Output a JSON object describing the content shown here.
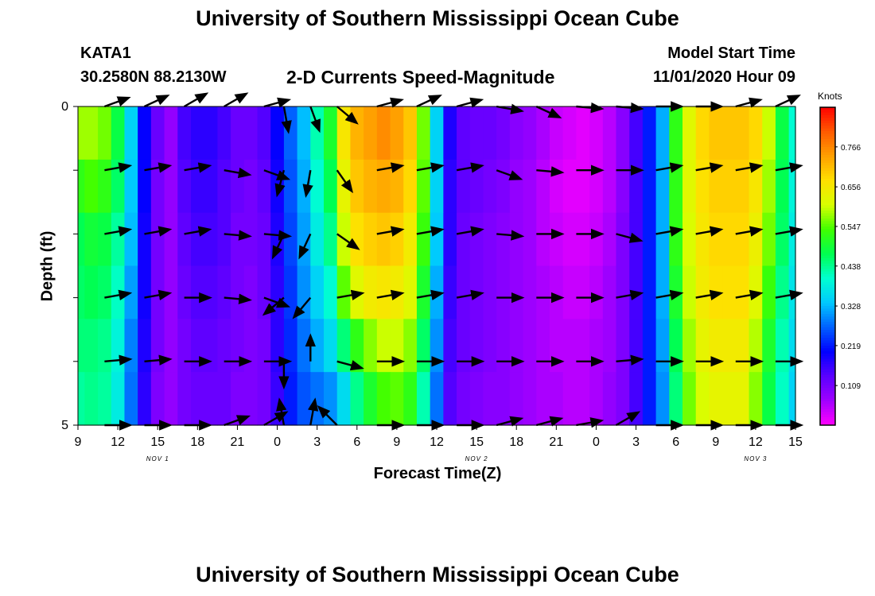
{
  "header": {
    "title": "University of Southern Mississippi Ocean Cube",
    "station": "KATA1",
    "coordinates": "30.2580N 88.2130W",
    "subtitle": "2-D Currents Speed-Magnitude",
    "model_start_label": "Model Start Time",
    "model_start_value": "11/01/2020 Hour 09"
  },
  "footer": {
    "title": "University of Southern Mississippi Ocean Cube"
  },
  "chart_data": {
    "type": "heatmap",
    "title": "2-D Currents Speed-Magnitude",
    "xlabel": "Forecast Time(Z)",
    "ylabel": "Depth (ft)",
    "x_start": "11/01/2020 09Z",
    "x_end": "11/03/2020 15Z",
    "x_ticks": [
      "9",
      "12",
      "15",
      "18",
      "21",
      "0",
      "3",
      "6",
      "9",
      "12",
      "15",
      "18",
      "21",
      "0",
      "3",
      "6",
      "9",
      "12",
      "15"
    ],
    "date_labels": [
      "NOV 1",
      "NOV 2",
      "NOV 3"
    ],
    "y_ticks": [
      "0",
      "5"
    ],
    "ylim": [
      0,
      5
    ],
    "y_inverted": true,
    "colorbar": {
      "unit": "Knots",
      "ticks": [
        "0.766",
        "0.656",
        "0.547",
        "0.438",
        "0.328",
        "0.219",
        "0.109"
      ],
      "range": [
        0,
        0.875
      ],
      "colors": [
        "#ff00ff",
        "#a000ff",
        "#5a00ff",
        "#0000ff",
        "#0060ff",
        "#00c8ff",
        "#00ffd0",
        "#00ff50",
        "#40ff00",
        "#d8ff00",
        "#ffe000",
        "#ffa000",
        "#ff5a00",
        "#ff0000"
      ]
    },
    "speed_time_points_hours": [
      0,
      1,
      2,
      3,
      4,
      5,
      6,
      7,
      8,
      9,
      10,
      11,
      12,
      13,
      14,
      15,
      16,
      17,
      18,
      19,
      20,
      21,
      22,
      23,
      24,
      25,
      26,
      27,
      28,
      29,
      30,
      31,
      32,
      33,
      34,
      35,
      36,
      37,
      38,
      39,
      40,
      41,
      42,
      43,
      44,
      45,
      46,
      47,
      48,
      49,
      50,
      51,
      52,
      53,
      54
    ],
    "speed_time_points": [
      [
        0.58,
        0.58,
        0.56,
        0.48,
        0.35,
        0.2,
        0.12,
        0.08,
        0.15,
        0.17,
        0.17,
        0.15,
        0.12,
        0.12,
        0.14,
        0.2,
        0.27,
        0.33,
        0.42,
        0.5,
        0.66,
        0.72,
        0.74,
        0.76,
        0.74,
        0.7,
        0.56,
        0.35,
        0.18,
        0.13,
        0.12,
        0.12,
        0.11,
        0.09,
        0.08,
        0.06,
        0.04,
        0.03,
        0.02,
        0.03,
        0.05,
        0.09,
        0.15,
        0.22,
        0.32,
        0.52,
        0.62,
        0.68,
        0.7,
        0.7,
        0.7,
        0.68,
        0.6,
        0.48,
        0.4
      ],
      [
        0.52,
        0.54,
        0.52,
        0.46,
        0.34,
        0.2,
        0.11,
        0.08,
        0.14,
        0.16,
        0.16,
        0.14,
        0.12,
        0.11,
        0.13,
        0.19,
        0.26,
        0.32,
        0.4,
        0.47,
        0.63,
        0.7,
        0.72,
        0.73,
        0.72,
        0.68,
        0.55,
        0.35,
        0.17,
        0.13,
        0.12,
        0.11,
        0.1,
        0.08,
        0.07,
        0.05,
        0.03,
        0.02,
        0.02,
        0.03,
        0.05,
        0.09,
        0.15,
        0.22,
        0.32,
        0.52,
        0.62,
        0.67,
        0.69,
        0.69,
        0.69,
        0.66,
        0.58,
        0.47,
        0.39
      ],
      [
        0.47,
        0.49,
        0.48,
        0.43,
        0.33,
        0.19,
        0.11,
        0.08,
        0.13,
        0.15,
        0.15,
        0.14,
        0.11,
        0.11,
        0.12,
        0.18,
        0.25,
        0.31,
        0.38,
        0.44,
        0.6,
        0.67,
        0.69,
        0.7,
        0.69,
        0.65,
        0.53,
        0.34,
        0.17,
        0.12,
        0.11,
        0.1,
        0.09,
        0.08,
        0.07,
        0.05,
        0.04,
        0.03,
        0.03,
        0.04,
        0.06,
        0.1,
        0.15,
        0.22,
        0.32,
        0.52,
        0.61,
        0.66,
        0.68,
        0.68,
        0.68,
        0.64,
        0.56,
        0.46,
        0.38
      ],
      [
        0.46,
        0.47,
        0.46,
        0.41,
        0.31,
        0.19,
        0.11,
        0.08,
        0.12,
        0.14,
        0.14,
        0.13,
        0.11,
        0.1,
        0.12,
        0.17,
        0.24,
        0.3,
        0.35,
        0.4,
        0.55,
        0.62,
        0.65,
        0.66,
        0.65,
        0.62,
        0.5,
        0.32,
        0.16,
        0.12,
        0.11,
        0.1,
        0.09,
        0.08,
        0.07,
        0.06,
        0.05,
        0.04,
        0.04,
        0.05,
        0.07,
        0.1,
        0.15,
        0.22,
        0.32,
        0.5,
        0.6,
        0.65,
        0.67,
        0.67,
        0.67,
        0.62,
        0.53,
        0.44,
        0.37
      ],
      [
        0.45,
        0.45,
        0.44,
        0.39,
        0.29,
        0.18,
        0.11,
        0.08,
        0.11,
        0.13,
        0.13,
        0.12,
        0.11,
        0.1,
        0.11,
        0.17,
        0.23,
        0.28,
        0.32,
        0.36,
        0.45,
        0.52,
        0.57,
        0.6,
        0.6,
        0.57,
        0.46,
        0.3,
        0.15,
        0.12,
        0.11,
        0.1,
        0.09,
        0.08,
        0.07,
        0.06,
        0.05,
        0.05,
        0.05,
        0.06,
        0.07,
        0.1,
        0.15,
        0.22,
        0.31,
        0.47,
        0.58,
        0.63,
        0.65,
        0.65,
        0.65,
        0.59,
        0.5,
        0.42,
        0.36
      ],
      [
        0.43,
        0.44,
        0.43,
        0.38,
        0.28,
        0.17,
        0.1,
        0.08,
        0.11,
        0.12,
        0.12,
        0.12,
        0.1,
        0.1,
        0.11,
        0.16,
        0.22,
        0.26,
        0.28,
        0.3,
        0.36,
        0.44,
        0.5,
        0.54,
        0.55,
        0.52,
        0.42,
        0.28,
        0.14,
        0.11,
        0.1,
        0.09,
        0.09,
        0.08,
        0.07,
        0.06,
        0.06,
        0.05,
        0.05,
        0.06,
        0.08,
        0.1,
        0.15,
        0.22,
        0.3,
        0.45,
        0.56,
        0.61,
        0.63,
        0.63,
        0.63,
        0.57,
        0.48,
        0.41,
        0.35
      ]
    ],
    "vector_times_hours": [
      2,
      5,
      8,
      11,
      14,
      15.5,
      17.5,
      19.5,
      22.5,
      25.5,
      28.5,
      31.5,
      34.5,
      37.5,
      40.5,
      43.5,
      46.5,
      49.5,
      52.5
    ],
    "vector_depths": [
      0,
      1,
      2,
      3,
      4,
      5
    ],
    "vector_directions_deg": [
      [
        70,
        65,
        60,
        60,
        75,
        170,
        160,
        130,
        75,
        65,
        75,
        100,
        115,
        95,
        95,
        90,
        90,
        75,
        65
      ],
      [
        80,
        80,
        80,
        100,
        110,
        195,
        190,
        145,
        80,
        80,
        80,
        110,
        95,
        90,
        90,
        80,
        80,
        80,
        80
      ],
      [
        80,
        80,
        80,
        95,
        95,
        205,
        205,
        125,
        80,
        80,
        80,
        95,
        90,
        90,
        105,
        80,
        80,
        80,
        80
      ],
      [
        80,
        80,
        90,
        95,
        110,
        230,
        220,
        80,
        80,
        80,
        80,
        90,
        90,
        90,
        80,
        80,
        80,
        80,
        80
      ],
      [
        85,
        85,
        90,
        90,
        90,
        180,
        0,
        105,
        90,
        90,
        90,
        90,
        90,
        90,
        85,
        90,
        90,
        90,
        90
      ],
      [
        90,
        90,
        90,
        70,
        60,
        350,
        10,
        315,
        90,
        90,
        90,
        75,
        75,
        80,
        60,
        90,
        90,
        90,
        90
      ]
    ]
  }
}
